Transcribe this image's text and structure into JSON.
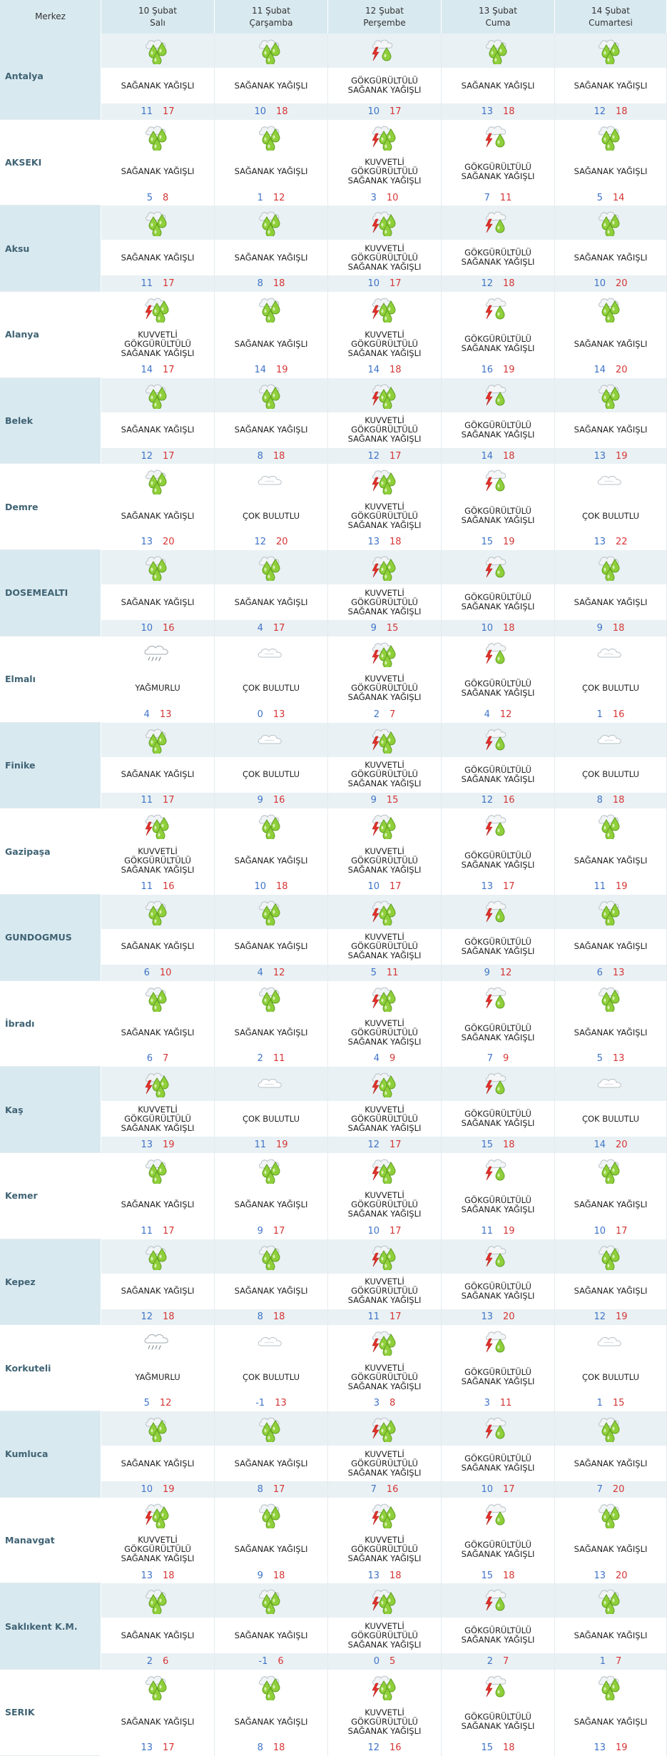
{
  "header": {
    "merkez_label": "Merkez",
    "days": [
      {
        "date": "10 Şubat",
        "weekday": "Salı"
      },
      {
        "date": "11 Şubat",
        "weekday": "Çarşamba"
      },
      {
        "date": "12 Şubat",
        "weekday": "Perşembe"
      },
      {
        "date": "13 Şubat",
        "weekday": "Cuma"
      },
      {
        "date": "14 Şubat",
        "weekday": "Cumartesi"
      }
    ]
  },
  "icons": {
    "SAGANAK": "showers-icon",
    "KUVVETLI": "heavy-thunder-showers-icon",
    "GOK": "thunder-showers-icon",
    "COK": "mostly-cloudy-icon",
    "YAG": "rain-icon"
  },
  "colors": {
    "header_bg": "#d9e9f0",
    "band_bg": "#e9f1f4",
    "city_text": "#3f6374",
    "min_temp": "#3f74c7",
    "max_temp": "#d63535",
    "drop_green": "#8fcf3a",
    "bolt_red": "#e2312b"
  },
  "rows": [
    {
      "city": "Antalya",
      "days": [
        {
          "icon": "SAGANAK",
          "desc": [
            "SAĞANAK YAĞIŞLI"
          ],
          "min": "11",
          "max": "17"
        },
        {
          "icon": "SAGANAK",
          "desc": [
            "SAĞANAK YAĞIŞLI"
          ],
          "min": "10",
          "max": "18"
        },
        {
          "icon": "GOK",
          "desc": [
            "GÖKGÜRÜLTÜLÜ",
            "SAĞANAK YAĞIŞLI"
          ],
          "min": "10",
          "max": "17"
        },
        {
          "icon": "SAGANAK",
          "desc": [
            "SAĞANAK YAĞIŞLI"
          ],
          "min": "13",
          "max": "18"
        },
        {
          "icon": "SAGANAK",
          "desc": [
            "SAĞANAK YAĞIŞLI"
          ],
          "min": "12",
          "max": "18"
        }
      ]
    },
    {
      "city": "AKSEKI",
      "days": [
        {
          "icon": "SAGANAK",
          "desc": [
            "SAĞANAK YAĞIŞLI"
          ],
          "min": "5",
          "max": "8"
        },
        {
          "icon": "SAGANAK",
          "desc": [
            "SAĞANAK YAĞIŞLI"
          ],
          "min": "1",
          "max": "12"
        },
        {
          "icon": "KUVVETLI",
          "desc": [
            "KUVVETLİ",
            "GÖKGÜRÜLTÜLÜ",
            "SAĞANAK YAĞIŞLI"
          ],
          "min": "3",
          "max": "10"
        },
        {
          "icon": "GOK",
          "desc": [
            "GÖKGÜRÜLTÜLÜ",
            "SAĞANAK YAĞIŞLI"
          ],
          "min": "7",
          "max": "11"
        },
        {
          "icon": "SAGANAK",
          "desc": [
            "SAĞANAK YAĞIŞLI"
          ],
          "min": "5",
          "max": "14"
        }
      ]
    },
    {
      "city": "Aksu",
      "days": [
        {
          "icon": "SAGANAK",
          "desc": [
            "SAĞANAK YAĞIŞLI"
          ],
          "min": "11",
          "max": "17"
        },
        {
          "icon": "SAGANAK",
          "desc": [
            "SAĞANAK YAĞIŞLI"
          ],
          "min": "8",
          "max": "18"
        },
        {
          "icon": "KUVVETLI",
          "desc": [
            "KUVVETLİ",
            "GÖKGÜRÜLTÜLÜ",
            "SAĞANAK YAĞIŞLI"
          ],
          "min": "10",
          "max": "17"
        },
        {
          "icon": "GOK",
          "desc": [
            "GÖKGÜRÜLTÜLÜ",
            "SAĞANAK YAĞIŞLI"
          ],
          "min": "12",
          "max": "18"
        },
        {
          "icon": "SAGANAK",
          "desc": [
            "SAĞANAK YAĞIŞLI"
          ],
          "min": "10",
          "max": "20"
        }
      ]
    },
    {
      "city": "Alanya",
      "days": [
        {
          "icon": "KUVVETLI",
          "desc": [
            "KUVVETLİ",
            "GÖKGÜRÜLTÜLÜ",
            "SAĞANAK YAĞIŞLI"
          ],
          "min": "14",
          "max": "17"
        },
        {
          "icon": "SAGANAK",
          "desc": [
            "SAĞANAK YAĞIŞLI"
          ],
          "min": "14",
          "max": "19"
        },
        {
          "icon": "KUVVETLI",
          "desc": [
            "KUVVETLİ",
            "GÖKGÜRÜLTÜLÜ",
            "SAĞANAK YAĞIŞLI"
          ],
          "min": "14",
          "max": "18"
        },
        {
          "icon": "GOK",
          "desc": [
            "GÖKGÜRÜLTÜLÜ",
            "SAĞANAK YAĞIŞLI"
          ],
          "min": "16",
          "max": "19"
        },
        {
          "icon": "SAGANAK",
          "desc": [
            "SAĞANAK YAĞIŞLI"
          ],
          "min": "14",
          "max": "20"
        }
      ]
    },
    {
      "city": "Belek",
      "days": [
        {
          "icon": "SAGANAK",
          "desc": [
            "SAĞANAK YAĞIŞLI"
          ],
          "min": "12",
          "max": "17"
        },
        {
          "icon": "SAGANAK",
          "desc": [
            "SAĞANAK YAĞIŞLI"
          ],
          "min": "8",
          "max": "18"
        },
        {
          "icon": "KUVVETLI",
          "desc": [
            "KUVVETLİ",
            "GÖKGÜRÜLTÜLÜ",
            "SAĞANAK YAĞIŞLI"
          ],
          "min": "12",
          "max": "17"
        },
        {
          "icon": "GOK",
          "desc": [
            "GÖKGÜRÜLTÜLÜ",
            "SAĞANAK YAĞIŞLI"
          ],
          "min": "14",
          "max": "18"
        },
        {
          "icon": "SAGANAK",
          "desc": [
            "SAĞANAK YAĞIŞLI"
          ],
          "min": "13",
          "max": "19"
        }
      ]
    },
    {
      "city": "Demre",
      "days": [
        {
          "icon": "SAGANAK",
          "desc": [
            "SAĞANAK YAĞIŞLI"
          ],
          "min": "13",
          "max": "20"
        },
        {
          "icon": "COK",
          "desc": [
            "ÇOK BULUTLU"
          ],
          "min": "12",
          "max": "20"
        },
        {
          "icon": "KUVVETLI",
          "desc": [
            "KUVVETLİ",
            "GÖKGÜRÜLTÜLÜ",
            "SAĞANAK YAĞIŞLI"
          ],
          "min": "13",
          "max": "18"
        },
        {
          "icon": "GOK",
          "desc": [
            "GÖKGÜRÜLTÜLÜ",
            "SAĞANAK YAĞIŞLI"
          ],
          "min": "15",
          "max": "19"
        },
        {
          "icon": "COK",
          "desc": [
            "ÇOK BULUTLU"
          ],
          "min": "13",
          "max": "22"
        }
      ]
    },
    {
      "city": "DOSEMEALTI",
      "days": [
        {
          "icon": "SAGANAK",
          "desc": [
            "SAĞANAK YAĞIŞLI"
          ],
          "min": "10",
          "max": "16"
        },
        {
          "icon": "SAGANAK",
          "desc": [
            "SAĞANAK YAĞIŞLI"
          ],
          "min": "4",
          "max": "17"
        },
        {
          "icon": "KUVVETLI",
          "desc": [
            "KUVVETLİ",
            "GÖKGÜRÜLTÜLÜ",
            "SAĞANAK YAĞIŞLI"
          ],
          "min": "9",
          "max": "15"
        },
        {
          "icon": "GOK",
          "desc": [
            "GÖKGÜRÜLTÜLÜ",
            "SAĞANAK YAĞIŞLI"
          ],
          "min": "10",
          "max": "18"
        },
        {
          "icon": "SAGANAK",
          "desc": [
            "SAĞANAK YAĞIŞLI"
          ],
          "min": "9",
          "max": "18"
        }
      ]
    },
    {
      "city": "Elmalı",
      "days": [
        {
          "icon": "YAG",
          "desc": [
            "YAĞMURLU"
          ],
          "min": "4",
          "max": "13"
        },
        {
          "icon": "COK",
          "desc": [
            "ÇOK BULUTLU"
          ],
          "min": "0",
          "max": "13"
        },
        {
          "icon": "KUVVETLI",
          "desc": [
            "KUVVETLİ",
            "GÖKGÜRÜLTÜLÜ",
            "SAĞANAK YAĞIŞLI"
          ],
          "min": "2",
          "max": "7"
        },
        {
          "icon": "GOK",
          "desc": [
            "GÖKGÜRÜLTÜLÜ",
            "SAĞANAK YAĞIŞLI"
          ],
          "min": "4",
          "max": "12"
        },
        {
          "icon": "COK",
          "desc": [
            "ÇOK BULUTLU"
          ],
          "min": "1",
          "max": "16"
        }
      ]
    },
    {
      "city": "Finike",
      "days": [
        {
          "icon": "SAGANAK",
          "desc": [
            "SAĞANAK YAĞIŞLI"
          ],
          "min": "11",
          "max": "17"
        },
        {
          "icon": "COK",
          "desc": [
            "ÇOK BULUTLU"
          ],
          "min": "9",
          "max": "16"
        },
        {
          "icon": "KUVVETLI",
          "desc": [
            "KUVVETLİ",
            "GÖKGÜRÜLTÜLÜ",
            "SAĞANAK YAĞIŞLI"
          ],
          "min": "9",
          "max": "15"
        },
        {
          "icon": "GOK",
          "desc": [
            "GÖKGÜRÜLTÜLÜ",
            "SAĞANAK YAĞIŞLI"
          ],
          "min": "12",
          "max": "16"
        },
        {
          "icon": "COK",
          "desc": [
            "ÇOK BULUTLU"
          ],
          "min": "8",
          "max": "18"
        }
      ]
    },
    {
      "city": "Gazipaşa",
      "days": [
        {
          "icon": "KUVVETLI",
          "desc": [
            "KUVVETLİ",
            "GÖKGÜRÜLTÜLÜ",
            "SAĞANAK YAĞIŞLI"
          ],
          "min": "11",
          "max": "16"
        },
        {
          "icon": "SAGANAK",
          "desc": [
            "SAĞANAK YAĞIŞLI"
          ],
          "min": "10",
          "max": "18"
        },
        {
          "icon": "KUVVETLI",
          "desc": [
            "KUVVETLİ",
            "GÖKGÜRÜLTÜLÜ",
            "SAĞANAK YAĞIŞLI"
          ],
          "min": "10",
          "max": "17"
        },
        {
          "icon": "GOK",
          "desc": [
            "GÖKGÜRÜLTÜLÜ",
            "SAĞANAK YAĞIŞLI"
          ],
          "min": "13",
          "max": "17"
        },
        {
          "icon": "SAGANAK",
          "desc": [
            "SAĞANAK YAĞIŞLI"
          ],
          "min": "11",
          "max": "19"
        }
      ]
    },
    {
      "city": "GUNDOGMUS",
      "days": [
        {
          "icon": "SAGANAK",
          "desc": [
            "SAĞANAK YAĞIŞLI"
          ],
          "min": "6",
          "max": "10"
        },
        {
          "icon": "SAGANAK",
          "desc": [
            "SAĞANAK YAĞIŞLI"
          ],
          "min": "4",
          "max": "12"
        },
        {
          "icon": "KUVVETLI",
          "desc": [
            "KUVVETLİ",
            "GÖKGÜRÜLTÜLÜ",
            "SAĞANAK YAĞIŞLI"
          ],
          "min": "5",
          "max": "11"
        },
        {
          "icon": "GOK",
          "desc": [
            "GÖKGÜRÜLTÜLÜ",
            "SAĞANAK YAĞIŞLI"
          ],
          "min": "9",
          "max": "12"
        },
        {
          "icon": "SAGANAK",
          "desc": [
            "SAĞANAK YAĞIŞLI"
          ],
          "min": "6",
          "max": "13"
        }
      ]
    },
    {
      "city": "İbradı",
      "days": [
        {
          "icon": "SAGANAK",
          "desc": [
            "SAĞANAK YAĞIŞLI"
          ],
          "min": "6",
          "max": "7"
        },
        {
          "icon": "SAGANAK",
          "desc": [
            "SAĞANAK YAĞIŞLI"
          ],
          "min": "2",
          "max": "11"
        },
        {
          "icon": "KUVVETLI",
          "desc": [
            "KUVVETLİ",
            "GÖKGÜRÜLTÜLÜ",
            "SAĞANAK YAĞIŞLI"
          ],
          "min": "4",
          "max": "9"
        },
        {
          "icon": "GOK",
          "desc": [
            "GÖKGÜRÜLTÜLÜ",
            "SAĞANAK YAĞIŞLI"
          ],
          "min": "7",
          "max": "9"
        },
        {
          "icon": "SAGANAK",
          "desc": [
            "SAĞANAK YAĞIŞLI"
          ],
          "min": "5",
          "max": "13"
        }
      ]
    },
    {
      "city": "Kaş",
      "days": [
        {
          "icon": "KUVVETLI",
          "desc": [
            "KUVVETLİ",
            "GÖKGÜRÜLTÜLÜ",
            "SAĞANAK YAĞIŞLI"
          ],
          "min": "13",
          "max": "19"
        },
        {
          "icon": "COK",
          "desc": [
            "ÇOK BULUTLU"
          ],
          "min": "11",
          "max": "19"
        },
        {
          "icon": "KUVVETLI",
          "desc": [
            "KUVVETLİ",
            "GÖKGÜRÜLTÜLÜ",
            "SAĞANAK YAĞIŞLI"
          ],
          "min": "12",
          "max": "17"
        },
        {
          "icon": "GOK",
          "desc": [
            "GÖKGÜRÜLTÜLÜ",
            "SAĞANAK YAĞIŞLI"
          ],
          "min": "15",
          "max": "18"
        },
        {
          "icon": "COK",
          "desc": [
            "ÇOK BULUTLU"
          ],
          "min": "14",
          "max": "20"
        }
      ]
    },
    {
      "city": "Kemer",
      "days": [
        {
          "icon": "SAGANAK",
          "desc": [
            "SAĞANAK YAĞIŞLI"
          ],
          "min": "11",
          "max": "17"
        },
        {
          "icon": "SAGANAK",
          "desc": [
            "SAĞANAK YAĞIŞLI"
          ],
          "min": "9",
          "max": "17"
        },
        {
          "icon": "KUVVETLI",
          "desc": [
            "KUVVETLİ",
            "GÖKGÜRÜLTÜLÜ",
            "SAĞANAK YAĞIŞLI"
          ],
          "min": "10",
          "max": "17"
        },
        {
          "icon": "GOK",
          "desc": [
            "GÖKGÜRÜLTÜLÜ",
            "SAĞANAK YAĞIŞLI"
          ],
          "min": "11",
          "max": "19"
        },
        {
          "icon": "SAGANAK",
          "desc": [
            "SAĞANAK YAĞIŞLI"
          ],
          "min": "10",
          "max": "17"
        }
      ]
    },
    {
      "city": "Kepez",
      "days": [
        {
          "icon": "SAGANAK",
          "desc": [
            "SAĞANAK YAĞIŞLI"
          ],
          "min": "12",
          "max": "18"
        },
        {
          "icon": "SAGANAK",
          "desc": [
            "SAĞANAK YAĞIŞLI"
          ],
          "min": "8",
          "max": "18"
        },
        {
          "icon": "KUVVETLI",
          "desc": [
            "KUVVETLİ",
            "GÖKGÜRÜLTÜLÜ",
            "SAĞANAK YAĞIŞLI"
          ],
          "min": "11",
          "max": "17"
        },
        {
          "icon": "GOK",
          "desc": [
            "GÖKGÜRÜLTÜLÜ",
            "SAĞANAK YAĞIŞLI"
          ],
          "min": "13",
          "max": "20"
        },
        {
          "icon": "SAGANAK",
          "desc": [
            "SAĞANAK YAĞIŞLI"
          ],
          "min": "12",
          "max": "19"
        }
      ]
    },
    {
      "city": "Korkuteli",
      "days": [
        {
          "icon": "YAG",
          "desc": [
            "YAĞMURLU"
          ],
          "min": "5",
          "max": "12"
        },
        {
          "icon": "COK",
          "desc": [
            "ÇOK BULUTLU"
          ],
          "min": "-1",
          "max": "13"
        },
        {
          "icon": "KUVVETLI",
          "desc": [
            "KUVVETLİ",
            "GÖKGÜRÜLTÜLÜ",
            "SAĞANAK YAĞIŞLI"
          ],
          "min": "3",
          "max": "8"
        },
        {
          "icon": "GOK",
          "desc": [
            "GÖKGÜRÜLTÜLÜ",
            "SAĞANAK YAĞIŞLI"
          ],
          "min": "3",
          "max": "11"
        },
        {
          "icon": "COK",
          "desc": [
            "ÇOK BULUTLU"
          ],
          "min": "1",
          "max": "15"
        }
      ]
    },
    {
      "city": "Kumluca",
      "days": [
        {
          "icon": "SAGANAK",
          "desc": [
            "SAĞANAK YAĞIŞLI"
          ],
          "min": "10",
          "max": "19"
        },
        {
          "icon": "SAGANAK",
          "desc": [
            "SAĞANAK YAĞIŞLI"
          ],
          "min": "8",
          "max": "17"
        },
        {
          "icon": "KUVVETLI",
          "desc": [
            "KUVVETLİ",
            "GÖKGÜRÜLTÜLÜ",
            "SAĞANAK YAĞIŞLI"
          ],
          "min": "7",
          "max": "16"
        },
        {
          "icon": "GOK",
          "desc": [
            "GÖKGÜRÜLTÜLÜ",
            "SAĞANAK YAĞIŞLI"
          ],
          "min": "10",
          "max": "17"
        },
        {
          "icon": "SAGANAK",
          "desc": [
            "SAĞANAK YAĞIŞLI"
          ],
          "min": "7",
          "max": "20"
        }
      ]
    },
    {
      "city": "Manavgat",
      "days": [
        {
          "icon": "KUVVETLI",
          "desc": [
            "KUVVETLİ",
            "GÖKGÜRÜLTÜLÜ",
            "SAĞANAK YAĞIŞLI"
          ],
          "min": "13",
          "max": "18"
        },
        {
          "icon": "SAGANAK",
          "desc": [
            "SAĞANAK YAĞIŞLI"
          ],
          "min": "9",
          "max": "18"
        },
        {
          "icon": "KUVVETLI",
          "desc": [
            "KUVVETLİ",
            "GÖKGÜRÜLTÜLÜ",
            "SAĞANAK YAĞIŞLI"
          ],
          "min": "13",
          "max": "18"
        },
        {
          "icon": "GOK",
          "desc": [
            "GÖKGÜRÜLTÜLÜ",
            "SAĞANAK YAĞIŞLI"
          ],
          "min": "15",
          "max": "18"
        },
        {
          "icon": "SAGANAK",
          "desc": [
            "SAĞANAK YAĞIŞLI"
          ],
          "min": "13",
          "max": "20"
        }
      ]
    },
    {
      "city": "Saklıkent K.M.",
      "days": [
        {
          "icon": "SAGANAK",
          "desc": [
            "SAĞANAK YAĞIŞLI"
          ],
          "min": "2",
          "max": "6"
        },
        {
          "icon": "SAGANAK",
          "desc": [
            "SAĞANAK YAĞIŞLI"
          ],
          "min": "-1",
          "max": "6"
        },
        {
          "icon": "KUVVETLI",
          "desc": [
            "KUVVETLİ",
            "GÖKGÜRÜLTÜLÜ",
            "SAĞANAK YAĞIŞLI"
          ],
          "min": "0",
          "max": "5"
        },
        {
          "icon": "GOK",
          "desc": [
            "GÖKGÜRÜLTÜLÜ",
            "SAĞANAK YAĞIŞLI"
          ],
          "min": "2",
          "max": "7"
        },
        {
          "icon": "SAGANAK",
          "desc": [
            "SAĞANAK YAĞIŞLI"
          ],
          "min": "1",
          "max": "7"
        }
      ]
    },
    {
      "city": "SERIK",
      "days": [
        {
          "icon": "SAGANAK",
          "desc": [
            "SAĞANAK YAĞIŞLI"
          ],
          "min": "13",
          "max": "17"
        },
        {
          "icon": "SAGANAK",
          "desc": [
            "SAĞANAK YAĞIŞLI"
          ],
          "min": "8",
          "max": "18"
        },
        {
          "icon": "KUVVETLI",
          "desc": [
            "KUVVETLİ",
            "GÖKGÜRÜLTÜLÜ",
            "SAĞANAK YAĞIŞLI"
          ],
          "min": "12",
          "max": "16"
        },
        {
          "icon": "GOK",
          "desc": [
            "GÖKGÜRÜLTÜLÜ",
            "SAĞANAK YAĞIŞLI"
          ],
          "min": "15",
          "max": "18"
        },
        {
          "icon": "SAGANAK",
          "desc": [
            "SAĞANAK YAĞIŞLI"
          ],
          "min": "13",
          "max": "19"
        }
      ]
    }
  ]
}
